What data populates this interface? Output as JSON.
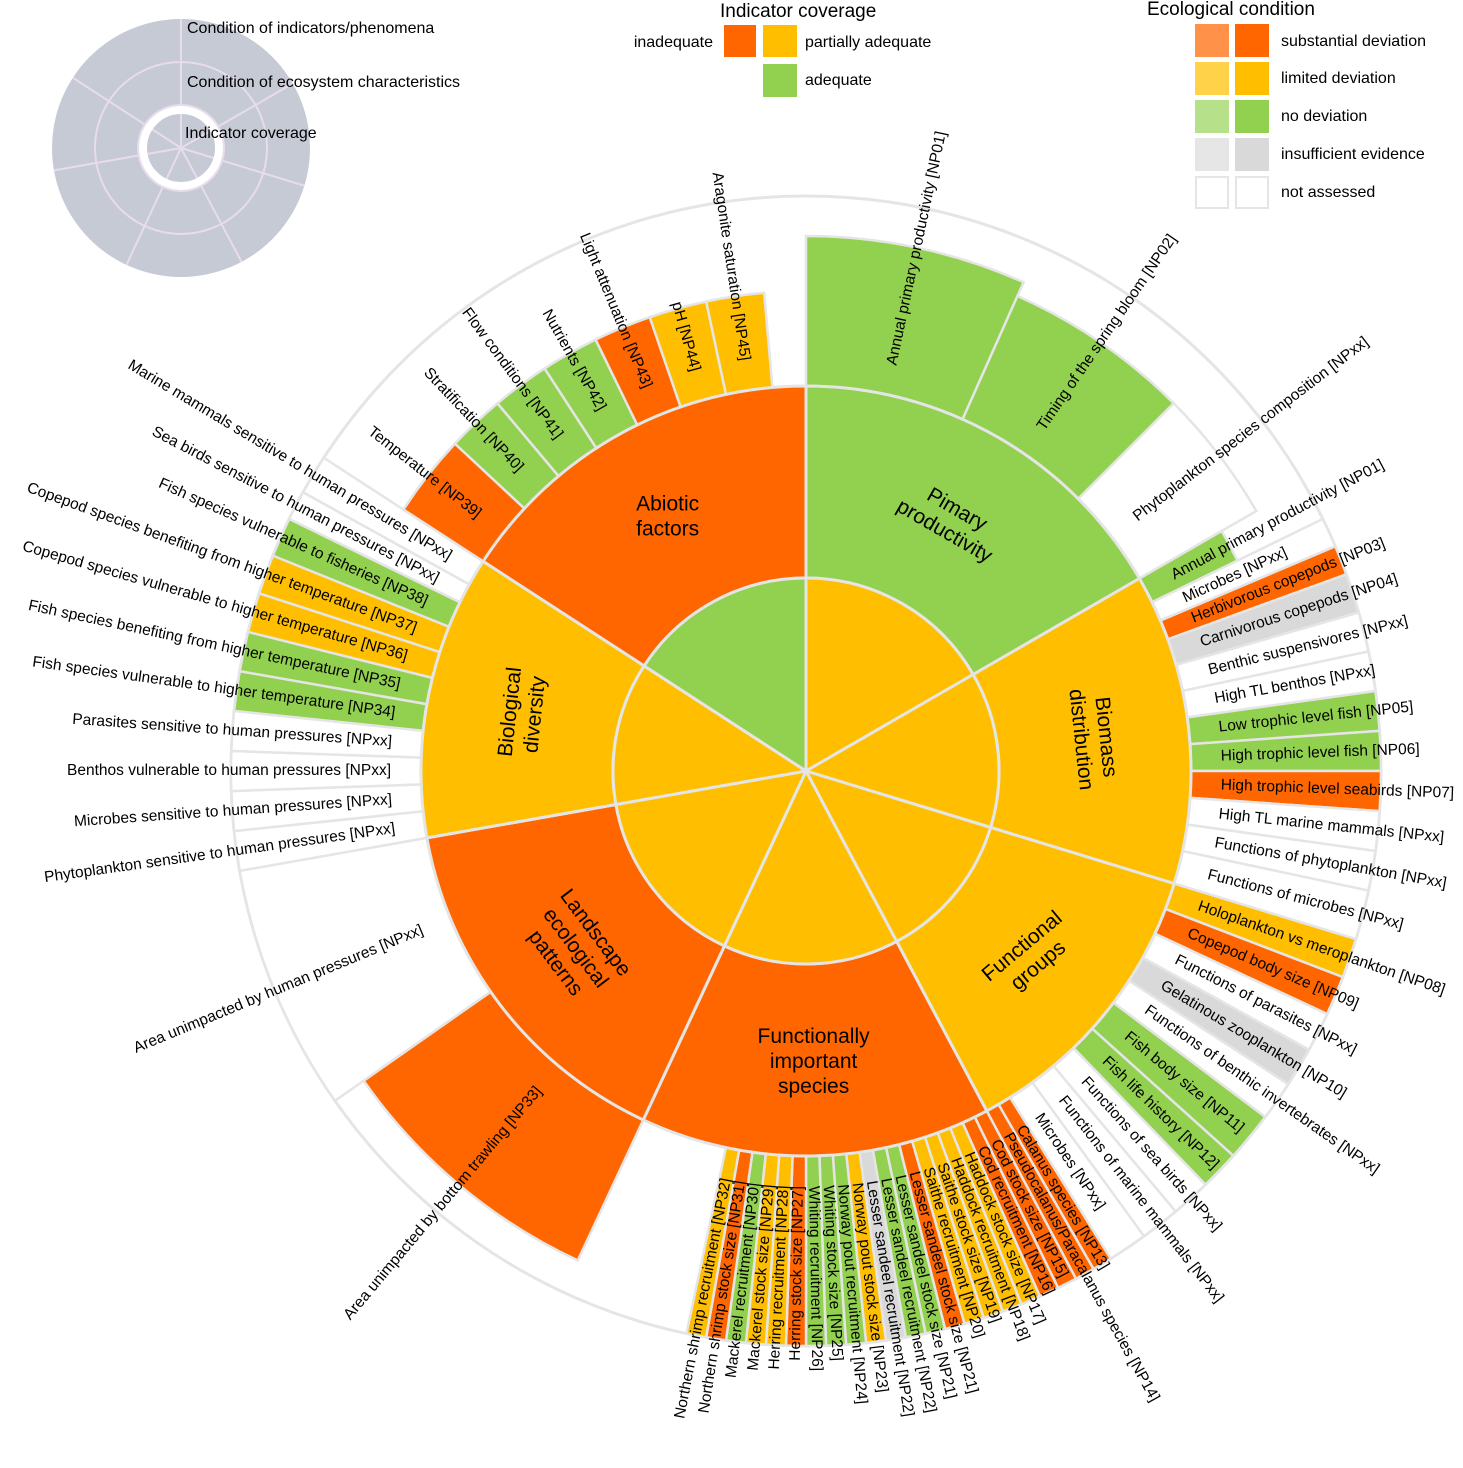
{
  "colors": {
    "substantial": "#ff6600",
    "limited": "#ffbf00",
    "none": "#92d050",
    "insufficient": "#d9d9d9",
    "not_assessed": "#ffffff",
    "substantial_light": "#ff9148",
    "limited_light": "#ffd24a",
    "none_light": "#b7e08b",
    "insufficient_light": "#e6e6e6",
    "separator": "#e5e5e5",
    "key_disc": "#c6cad5",
    "key_lines": "#e8dcec"
  },
  "key": {
    "ring_outer": "Condition of indicators/phenomena",
    "ring_middle": "Condition of ecosystem characteristics",
    "ring_inner": "Indicator coverage"
  },
  "legend_coverage": {
    "title": "Indicator coverage",
    "inadequate": "inadequate",
    "partially_adequate": "partially adequate",
    "adequate": "adequate"
  },
  "legend_condition": {
    "title": "Ecological condition",
    "substantial": "substantial deviation",
    "limited": "limited deviation",
    "none": "no deviation",
    "insufficient": "insufficient evidence",
    "not_assessed": "not assessed"
  },
  "characteristics": [
    {
      "label": "Pimary productivity",
      "condition": "none",
      "coverage": "limited",
      "start": 0,
      "end": 60
    },
    {
      "label": "Biomass distribution",
      "condition": "limited",
      "coverage": "limited",
      "start": 60,
      "end": 107
    },
    {
      "label": "Functional groups",
      "condition": "limited",
      "coverage": "limited",
      "start": 107,
      "end": 152
    },
    {
      "label": "Functionally important species",
      "condition": "substantial",
      "coverage": "limited",
      "start": 152,
      "end": 205
    },
    {
      "label": "Landscape ecological patterns",
      "condition": "substantial",
      "coverage": "limited",
      "start": 205,
      "end": 260
    },
    {
      "label": "Biological diversity",
      "condition": "limited",
      "coverage": "limited",
      "start": 260,
      "end": 303
    },
    {
      "label": "Abiotic factors",
      "condition": "substantial",
      "coverage": "none",
      "start": 303,
      "end": 360
    }
  ],
  "indicators": [
    {
      "label": "Annual primary productivity [NP01]",
      "condition": "none",
      "start": 0,
      "end": 24,
      "r": 535
    },
    {
      "label": "Timing of the spring bloom [NP02]",
      "condition": "none",
      "start": 24,
      "end": 45,
      "r": 520
    },
    {
      "label": "Phytoplankton species composition [NPxx]",
      "condition": "not_assessed",
      "start": 45,
      "end": 60,
      "r": 520
    },
    {
      "label": "Annual primary productivity [NP01]",
      "condition": "none",
      "start": 60,
      "end": 64,
      "r": 480
    },
    {
      "label": "Microbes [NPxx]",
      "condition": "not_assessed",
      "start": 64,
      "end": 67,
      "r": 575
    },
    {
      "label": "Herbivorous copepods [NP03]",
      "condition": "substantial",
      "start": 67,
      "end": 70,
      "r": 575
    },
    {
      "label": "Carnivorous copepods [NP04]",
      "condition": "insufficient",
      "start": 70,
      "end": 74,
      "r": 575
    },
    {
      "label": "Benthic suspensivores [NPxx]",
      "condition": "not_assessed",
      "start": 74,
      "end": 78,
      "r": 575
    },
    {
      "label": "High TL benthos [NPxx]",
      "condition": "not_assessed",
      "start": 78,
      "end": 82,
      "r": 575
    },
    {
      "label": "Low trophic level fish [NP05]",
      "condition": "none",
      "start": 82,
      "end": 86,
      "r": 575
    },
    {
      "label": "High trophic level fish [NP06]",
      "condition": "none",
      "start": 86,
      "end": 90,
      "r": 575
    },
    {
      "label": "High trophic level seabirds [NP07]",
      "condition": "substantial",
      "start": 90,
      "end": 94,
      "r": 575
    },
    {
      "label": "High TL marine mammals [NPxx]",
      "condition": "not_assessed",
      "start": 94,
      "end": 98,
      "r": 575
    },
    {
      "label": "Functions of phytoplankton [NPxx]",
      "condition": "not_assessed",
      "start": 98,
      "end": 102,
      "r": 575
    },
    {
      "label": "Functions of microbes [NPxx]",
      "condition": "not_assessed",
      "start": 102,
      "end": 107,
      "r": 575
    },
    {
      "label": "Holoplankton vs meroplankton [NP08]",
      "condition": "limited",
      "start": 107,
      "end": 111,
      "r": 575
    },
    {
      "label": "Copepod body size [NP09]",
      "condition": "substantial",
      "start": 111,
      "end": 115,
      "r": 575
    },
    {
      "label": "Functions of parasites [NPxx]",
      "condition": "not_assessed",
      "start": 115,
      "end": 119,
      "r": 575
    },
    {
      "label": "Gelatinous zooplankton [NP10]",
      "condition": "insufficient",
      "start": 119,
      "end": 123,
      "r": 575
    },
    {
      "label": "Functions of benthic invertebrates [NPxx]",
      "condition": "not_assessed",
      "start": 123,
      "end": 127,
      "r": 575
    },
    {
      "label": "Fish body size [NP11]",
      "condition": "none",
      "start": 127,
      "end": 132,
      "r": 575
    },
    {
      "label": "Fish life history [NP12]",
      "condition": "none",
      "start": 132,
      "end": 136,
      "r": 575
    },
    {
      "label": "Functions of sea birds [NPxx]",
      "condition": "not_assessed",
      "start": 136,
      "end": 140,
      "r": 575
    },
    {
      "label": "Functions of marine mammals [NPxx]",
      "condition": "not_assessed",
      "start": 140,
      "end": 144,
      "r": 575
    },
    {
      "label": "Microbes [NPxx]",
      "condition": "not_assessed",
      "start": 144,
      "end": 148,
      "r": 575
    },
    {
      "label": "Calanus species [NP13]",
      "condition": "substantial",
      "start": 148,
      "end": 150,
      "r": 575
    },
    {
      "label": "Pseudocalanus/Paracalanus species [NP14]",
      "condition": "substantial",
      "start": 150,
      "end": 152,
      "r": 575
    },
    {
      "label": "Cod stock size [NP15]",
      "condition": "substantial",
      "start": 152,
      "end": 154,
      "r": 575
    },
    {
      "label": "Cod recruitment [NP16]",
      "condition": "substantial",
      "start": 154,
      "end": 156,
      "r": 575
    },
    {
      "label": "Haddock stock size [NP17]",
      "condition": "limited",
      "start": 156,
      "end": 158,
      "r": 575
    },
    {
      "label": "Haddock recruitment [NP18]",
      "condition": "limited",
      "start": 158,
      "end": 160,
      "r": 575
    },
    {
      "label": "Saithe stock size [NP19]",
      "condition": "limited",
      "start": 160,
      "end": 162,
      "r": 575
    },
    {
      "label": "Saithe recruitment [NP20]",
      "condition": "limited",
      "start": 162,
      "end": 164,
      "r": 575
    },
    {
      "label": "Lesser sandeel stock size [NP21]",
      "condition": "substantial",
      "start": 164,
      "end": 166,
      "r": 575
    },
    {
      "label": "Lesser sandeel stock size [NP21]",
      "condition": "none",
      "start": 166,
      "end": 168,
      "r": 575
    },
    {
      "label": "Lesser sandeel recruitment [NP22]",
      "condition": "none",
      "start": 168,
      "end": 170,
      "r": 575
    },
    {
      "label": "Lesser sandeel recruitment [NP22]",
      "condition": "insufficient",
      "start": 170,
      "end": 172,
      "r": 575
    },
    {
      "label": "Norway pout stock size [NP23]",
      "condition": "limited",
      "start": 172,
      "end": 174,
      "r": 575
    },
    {
      "label": "Norway pout recruitment [NP24]",
      "condition": "none",
      "start": 174,
      "end": 176,
      "r": 575
    },
    {
      "label": "Whiting stock size [NP25]",
      "condition": "none",
      "start": 176,
      "end": 178,
      "r": 575
    },
    {
      "label": "Whiting recruitment [NP26]",
      "condition": "none",
      "start": 178,
      "end": 180,
      "r": 575
    },
    {
      "label": "Herring stock size [NP27]",
      "condition": "substantial",
      "start": 180,
      "end": 182,
      "r": 575
    },
    {
      "label": "Herring recruitment [NP28]",
      "condition": "limited",
      "start": 182,
      "end": 184,
      "r": 575
    },
    {
      "label": "Mackerel stock size [NP29]",
      "condition": "limited",
      "start": 184,
      "end": 186,
      "r": 575
    },
    {
      "label": "Mackerel recruitment [NP30]",
      "condition": "none",
      "start": 186,
      "end": 188,
      "r": 575
    },
    {
      "label": "Northern shrimp stock size [NP31]",
      "condition": "substantial",
      "start": 188,
      "end": 190,
      "r": 575
    },
    {
      "label": "Northern shrimp recruitment [NP32]",
      "condition": "limited",
      "start": 190,
      "end": 192,
      "r": 575
    },
    {
      "label": "Area unimpacted by bottom trawling [NP33]",
      "condition": "substantial",
      "start": 205,
      "end": 235,
      "r": 540
    },
    {
      "label": "Area unimpacted by human pressures [NPxx]",
      "condition": "not_assessed",
      "start": 235,
      "end": 260,
      "r": 575
    },
    {
      "label": "Phytoplankton sensitive to human pressures [NPxx]",
      "condition": "not_assessed",
      "start": 260,
      "end": 264,
      "r": 575
    },
    {
      "label": "Microbes sensitive to human pressures [NPxx]",
      "condition": "not_assessed",
      "start": 264,
      "end": 268,
      "r": 575
    },
    {
      "label": "Benthos vulnerable to human pressures [NPxx]",
      "condition": "not_assessed",
      "start": 268,
      "end": 272,
      "r": 575
    },
    {
      "label": "Parasites sensitive to human pressures [NPxx]",
      "condition": "not_assessed",
      "start": 272,
      "end": 276,
      "r": 575
    },
    {
      "label": "Fish species vulnerable to higher temperature [NP34]",
      "condition": "none",
      "start": 276,
      "end": 280,
      "r": 575
    },
    {
      "label": "Fish species benefiting from higher temperature [NP35]",
      "condition": "none",
      "start": 280,
      "end": 284,
      "r": 575
    },
    {
      "label": "Copepod species vulnerable to higher temperature [NP36]",
      "condition": "limited",
      "start": 284,
      "end": 288,
      "r": 575
    },
    {
      "label": "Copepod species benefiting from higher temperature [NP37]",
      "condition": "limited",
      "start": 288,
      "end": 292,
      "r": 575
    },
    {
      "label": "Fish species vulnerable to fisheries [NP38]",
      "condition": "none",
      "start": 292,
      "end": 296,
      "r": 575
    },
    {
      "label": "Sea birds sensitive to human pressures [NPxx]",
      "condition": "not_assessed",
      "start": 296,
      "end": 299,
      "r": 575
    },
    {
      "label": "Marine mammals sensitive to human pressures [NPxx]",
      "condition": "not_assessed",
      "start": 299,
      "end": 303,
      "r": 575
    },
    {
      "label": "Temperature [NP39]",
      "condition": "substantial",
      "start": 303,
      "end": 313,
      "r": 480
    },
    {
      "label": "Stratification [NP40]",
      "condition": "none",
      "start": 313,
      "end": 320,
      "r": 480
    },
    {
      "label": "Flow conditions [NP41]",
      "condition": "none",
      "start": 320,
      "end": 327,
      "r": 480
    },
    {
      "label": "Nutrients [NP42]",
      "condition": "none",
      "start": 327,
      "end": 334,
      "r": 480
    },
    {
      "label": "Light attenuation [NP43]",
      "condition": "substantial",
      "start": 334,
      "end": 341,
      "r": 480
    },
    {
      "label": "pH [NP44]",
      "condition": "limited",
      "start": 341,
      "end": 348,
      "r": 480
    },
    {
      "label": "Aragonite saturation [NP45]",
      "condition": "limited",
      "start": 348,
      "end": 355,
      "r": 480
    }
  ]
}
